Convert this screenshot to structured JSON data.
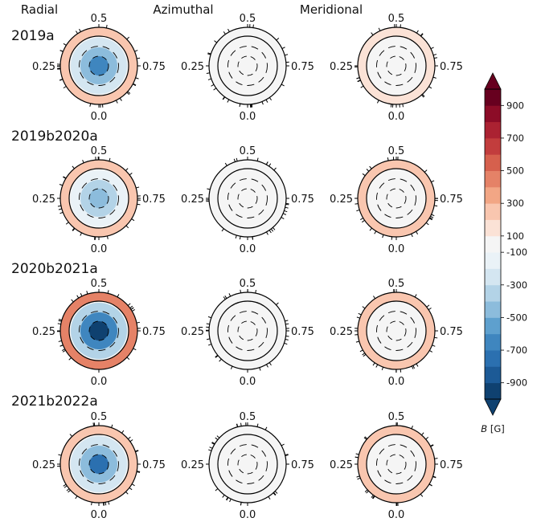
{
  "chart_data": {
    "type": "heatmap",
    "columns": [
      "Radial",
      "Azimuthal",
      "Meridional"
    ],
    "rows": [
      "2019a",
      "2019b2020a",
      "2020b2021a",
      "2021b2022a"
    ],
    "phase_labels": {
      "top": "0.5",
      "left": "0.25",
      "right": "0.75",
      "bottom": "0.0"
    },
    "colorbar": {
      "label": "B [G]",
      "levels": [
        -1000,
        -900,
        -800,
        -700,
        -600,
        -500,
        -400,
        -300,
        -200,
        -100,
        100,
        200,
        300,
        400,
        500,
        600,
        700,
        800,
        900,
        1000
      ],
      "colors": [
        "#0f4170",
        "#1c5a96",
        "#2b70b0",
        "#3f86bf",
        "#5ea0ce",
        "#8cbcdc",
        "#b3d3e7",
        "#d4e6f1",
        "#eaf2f7",
        "#f5f5f5",
        "#fbe2d6",
        "#f9c6af",
        "#f2a685",
        "#e58267",
        "#d6604d",
        "#c23d3d",
        "#ab2232",
        "#8c0c27",
        "#67001f"
      ],
      "tick_labels": [
        "900",
        "700",
        "500",
        "300",
        "100",
        "-100",
        "-300",
        "-500",
        "-700",
        "-900"
      ]
    },
    "maps": [
      [
        {
          "pole": -630,
          "inner": -430,
          "mid": -230,
          "band": 270
        },
        {
          "pole": 0,
          "inner": 0,
          "mid": 0,
          "band": 0
        },
        {
          "pole": 0,
          "inner": 0,
          "mid": 0,
          "band": 190
        }
      ],
      [
        {
          "pole": -430,
          "inner": -330,
          "mid": -200,
          "band": 280
        },
        {
          "pole": 0,
          "inner": 0,
          "mid": 0,
          "band": 0
        },
        {
          "pole": 0,
          "inner": 0,
          "mid": 0,
          "band": 200
        }
      ],
      [
        {
          "pole": -980,
          "inner": -630,
          "mid": -380,
          "band": 430
        },
        {
          "pole": 0,
          "inner": 0,
          "mid": 0,
          "band": 0
        },
        {
          "pole": 0,
          "inner": 0,
          "mid": 0,
          "band": 230
        }
      ],
      [
        {
          "pole": -730,
          "inner": -430,
          "mid": -230,
          "band": 260
        },
        {
          "pole": 0,
          "inner": 0,
          "mid": 0,
          "band": 0
        },
        {
          "pole": 0,
          "inner": 0,
          "mid": 0,
          "band": 200
        }
      ]
    ]
  }
}
